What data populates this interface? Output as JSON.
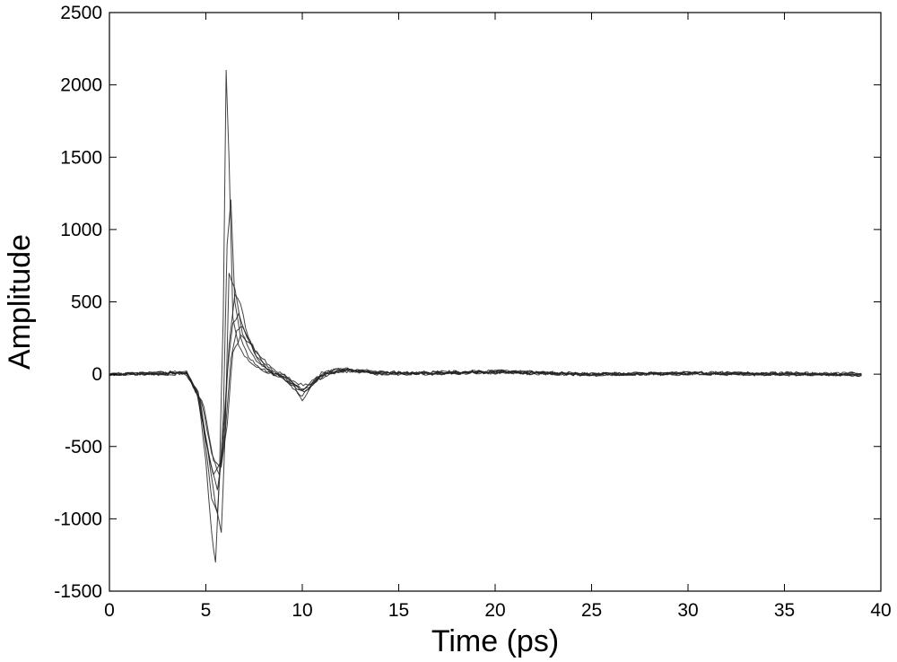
{
  "chart_data": {
    "type": "line",
    "title": "",
    "xlabel": "Time (ps)",
    "ylabel": "Amplitude",
    "xlim": [
      0,
      40
    ],
    "ylim": [
      -1500,
      2500
    ],
    "xticks": [
      0,
      5,
      10,
      15,
      20,
      25,
      30,
      35,
      40
    ],
    "yticks": [
      -1500,
      -1000,
      -500,
      0,
      500,
      1000,
      1500,
      2000,
      2500
    ],
    "grid": false,
    "legend": "none",
    "line_color": "#222222",
    "description_series": "overlaid waveforms (~20 traces)",
    "series": [
      {
        "x": [
          0,
          4,
          4.6,
          5.0,
          5.3,
          5.5,
          5.7,
          5.9,
          6.05,
          6.2,
          6.4,
          6.7,
          7.0,
          7.5,
          8.0,
          8.5,
          9.0,
          9.5,
          10.0,
          10.5,
          11.0,
          12.0,
          14,
          20,
          25,
          30,
          35,
          39
        ],
        "y": [
          0,
          10,
          -150,
          -600,
          -1100,
          -1310,
          -700,
          400,
          2100,
          1500,
          400,
          200,
          120,
          60,
          20,
          0,
          -10,
          -60,
          -180,
          -80,
          0,
          40,
          10,
          20,
          0,
          5,
          0,
          -5
        ]
      },
      {
        "x": [
          0,
          4,
          4.6,
          5.0,
          5.3,
          5.6,
          5.9,
          6.1,
          6.3,
          6.5,
          6.8,
          7.2,
          7.8,
          8.5,
          9.0,
          9.5,
          10.0,
          10.5,
          11.0,
          12.0,
          14,
          20,
          25,
          30,
          35,
          39
        ],
        "y": [
          0,
          10,
          -120,
          -500,
          -850,
          -950,
          -300,
          900,
          1200,
          500,
          250,
          120,
          40,
          5,
          -20,
          -90,
          -150,
          -60,
          10,
          35,
          5,
          15,
          -5,
          10,
          0,
          0
        ]
      },
      {
        "x": [
          0,
          4,
          4.7,
          5.2,
          5.6,
          5.9,
          6.2,
          6.5,
          6.8,
          7.2,
          7.8,
          8.5,
          9.0,
          9.5,
          10.0,
          10.5,
          11.0,
          12.0,
          14,
          20,
          25,
          30,
          35,
          39
        ],
        "y": [
          0,
          5,
          -180,
          -600,
          -800,
          -500,
          200,
          550,
          480,
          250,
          80,
          0,
          -30,
          -80,
          -120,
          -40,
          0,
          30,
          0,
          10,
          0,
          5,
          -5,
          0
        ]
      },
      {
        "x": [
          0,
          4,
          4.5,
          5.0,
          5.4,
          5.8,
          6.1,
          6.4,
          6.7,
          7.0,
          7.5,
          8.2,
          9.0,
          9.5,
          10.0,
          10.6,
          11.2,
          12.5,
          15,
          20,
          25,
          30,
          35,
          39
        ],
        "y": [
          0,
          15,
          -100,
          -450,
          -700,
          -600,
          0,
          350,
          420,
          300,
          150,
          30,
          -20,
          -70,
          -110,
          -50,
          10,
          25,
          5,
          20,
          5,
          0,
          10,
          -10
        ]
      },
      {
        "x": [
          0,
          4,
          4.8,
          5.3,
          5.7,
          6.0,
          6.3,
          6.6,
          6.9,
          7.3,
          8.0,
          8.8,
          9.3,
          9.8,
          10.2,
          10.8,
          11.5,
          13,
          16,
          20,
          25,
          30,
          35,
          39
        ],
        "y": [
          0,
          0,
          -200,
          -550,
          -700,
          -400,
          100,
          300,
          330,
          220,
          80,
          -10,
          -50,
          -90,
          -100,
          -40,
          15,
          20,
          0,
          15,
          -5,
          5,
          0,
          5
        ]
      },
      {
        "x": [
          0,
          4,
          4.6,
          5.1,
          5.5,
          5.8,
          6.0,
          6.2,
          6.5,
          6.9,
          7.5,
          8.3,
          9.0,
          9.6,
          10.1,
          10.7,
          11.3,
          12.5,
          15,
          20,
          25,
          30,
          35,
          39
        ],
        "y": [
          0,
          8,
          -140,
          -520,
          -900,
          -1100,
          -400,
          700,
          600,
          280,
          110,
          20,
          -15,
          -75,
          -130,
          -50,
          5,
          30,
          10,
          20,
          0,
          10,
          5,
          0
        ]
      },
      {
        "x": [
          0,
          4,
          4.9,
          5.4,
          5.8,
          6.1,
          6.4,
          6.8,
          7.2,
          7.7,
          8.4,
          9.2,
          9.8,
          10.3,
          11.0,
          12.0,
          15,
          20,
          25,
          30,
          35,
          39
        ],
        "y": [
          0,
          10,
          -220,
          -600,
          -650,
          -350,
          150,
          260,
          230,
          140,
          40,
          -20,
          -70,
          -80,
          -20,
          25,
          5,
          10,
          0,
          5,
          0,
          -5
        ]
      }
    ]
  }
}
